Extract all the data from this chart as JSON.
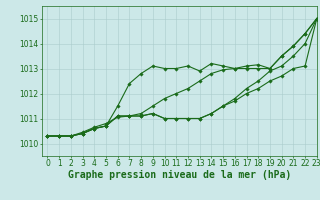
{
  "title": "Graphe pression niveau de la mer (hPa)",
  "bg_color": "#cce8e8",
  "grid_color": "#aacccc",
  "line_color": "#1a6b1a",
  "xlim": [
    -0.5,
    23
  ],
  "ylim": [
    1009.5,
    1015.5
  ],
  "yticks": [
    1010,
    1011,
    1012,
    1013,
    1014,
    1015
  ],
  "xticks": [
    0,
    1,
    2,
    3,
    4,
    5,
    6,
    7,
    8,
    9,
    10,
    11,
    12,
    13,
    14,
    15,
    16,
    17,
    18,
    19,
    20,
    21,
    22,
    23
  ],
  "series": [
    [
      1010.3,
      1010.3,
      1010.3,
      1010.4,
      1010.6,
      1010.7,
      1011.5,
      1012.4,
      1012.8,
      1013.1,
      1013.0,
      1013.0,
      1013.1,
      1012.9,
      1013.2,
      1013.1,
      1013.0,
      1013.0,
      1013.0,
      1013.0,
      1013.5,
      1013.9,
      1014.4,
      1015.0
    ],
    [
      1010.3,
      1010.3,
      1010.3,
      1010.4,
      1010.6,
      1010.7,
      1011.1,
      1011.1,
      1011.1,
      1011.2,
      1011.0,
      1011.0,
      1011.0,
      1011.0,
      1011.2,
      1011.5,
      1011.7,
      1012.0,
      1012.2,
      1012.5,
      1012.7,
      1013.0,
      1013.1,
      1015.0
    ],
    [
      1010.3,
      1010.3,
      1010.3,
      1010.4,
      1010.6,
      1010.7,
      1011.1,
      1011.1,
      1011.1,
      1011.2,
      1011.0,
      1011.0,
      1011.0,
      1011.0,
      1011.2,
      1011.5,
      1011.8,
      1012.2,
      1012.5,
      1012.9,
      1013.1,
      1013.5,
      1014.0,
      1015.0
    ],
    [
      1010.3,
      1010.3,
      1010.3,
      1010.45,
      1010.65,
      1010.8,
      1011.05,
      1011.1,
      1011.2,
      1011.5,
      1011.8,
      1012.0,
      1012.2,
      1012.5,
      1012.8,
      1012.95,
      1013.0,
      1013.1,
      1013.15,
      1013.0,
      1013.5,
      1013.9,
      1014.4,
      1015.0
    ]
  ],
  "marker": "D",
  "markersize": 1.8,
  "linewidth": 0.8,
  "tick_fontsize": 5.5,
  "xlabel_fontsize": 7,
  "fig_width": 3.2,
  "fig_height": 2.0,
  "dpi": 100
}
